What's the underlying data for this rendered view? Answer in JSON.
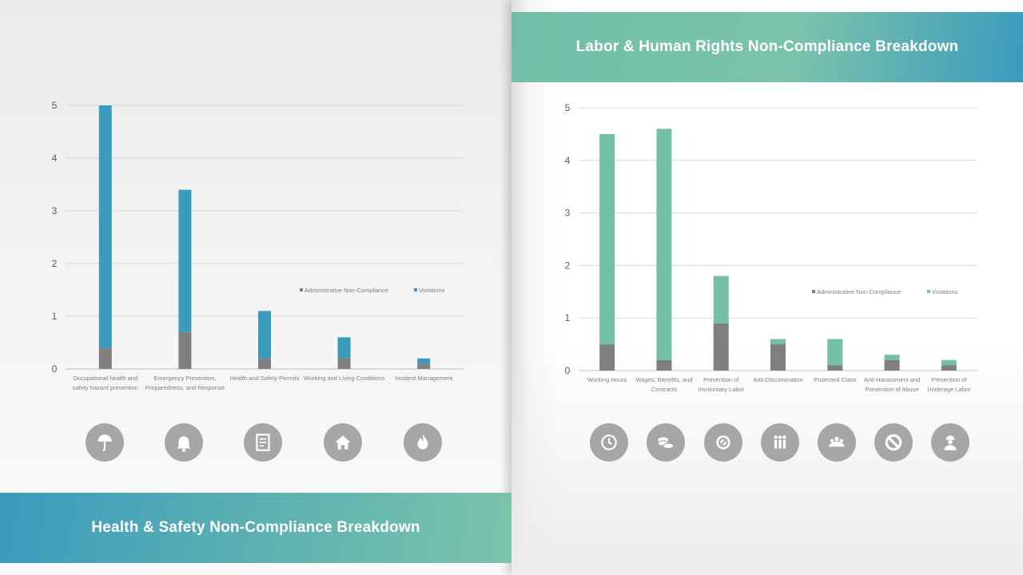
{
  "left_panel": {
    "banner_title": "Health & Safety Non-Compliance Breakdown",
    "icons": [
      "umbrella-icon",
      "bell-icon",
      "document-icon",
      "home-icon",
      "flame-icon"
    ]
  },
  "right_panel": {
    "banner_title": "Labor & Human Rights Non-Compliance Breakdown",
    "icons": [
      "clock-icon",
      "coins-icon",
      "no-entry-icon",
      "people-icon",
      "group-icon",
      "prohibited-icon",
      "worker-icon"
    ]
  },
  "chart_data": [
    {
      "type": "bar",
      "stacked": true,
      "categories": [
        [
          "Occupational health and",
          "safety hazard prevention"
        ],
        [
          "Emergency Prevention,",
          "Preparedness, and Response"
        ],
        [
          "Health and Safety Permits"
        ],
        [
          "Working and Living Conditions"
        ],
        [
          "Incident Management"
        ]
      ],
      "series": [
        {
          "name": "Administrative Non-Compliance",
          "color": "#7f7f7f",
          "values": [
            0.4,
            0.7,
            0.2,
            0.2,
            0.1
          ]
        },
        {
          "name": "Violations",
          "color": "#3a9bbd",
          "values": [
            4.6,
            2.7,
            0.9,
            0.4,
            0.1
          ]
        }
      ],
      "yticks": [
        "0",
        "1",
        "2",
        "3",
        "4",
        "5"
      ],
      "ylim": [
        0,
        5
      ],
      "grid": true,
      "legend": "right-middle"
    },
    {
      "type": "bar",
      "stacked": true,
      "categories": [
        [
          "Working Hours"
        ],
        [
          "Wages, Benefits, and",
          "Contracts"
        ],
        [
          "Prevention of",
          "Involuntary Labor"
        ],
        [
          "Anti-Discrimination"
        ],
        [
          "Protected Class"
        ],
        [
          "Anti-Harassment and",
          "Prevention of Abuse"
        ],
        [
          "Prevention of",
          "Underage Labor"
        ]
      ],
      "series": [
        {
          "name": "Administrative Non-Compliance",
          "color": "#7f7f7f",
          "values": [
            0.5,
            0.2,
            0.9,
            0.5,
            0.1,
            0.2,
            0.1
          ]
        },
        {
          "name": "Violations",
          "color": "#74bfa8",
          "values": [
            4.0,
            4.4,
            0.9,
            0.1,
            0.5,
            0.1,
            0.1
          ]
        }
      ],
      "yticks": [
        "0",
        "1",
        "2",
        "3",
        "4",
        "5"
      ],
      "ylim": [
        0,
        5
      ],
      "grid": true,
      "legend": "right-middle"
    }
  ]
}
